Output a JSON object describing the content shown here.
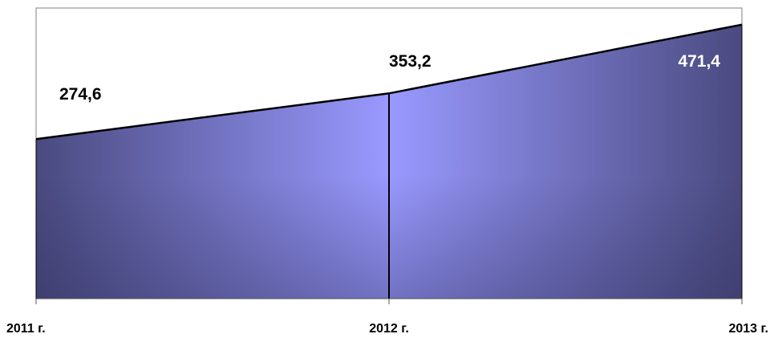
{
  "chart_data": {
    "type": "area",
    "categories": [
      "2011 г.",
      "2012 г.",
      "2013 г."
    ],
    "values": [
      274.6,
      353.2,
      471.4
    ],
    "data_labels": [
      "274,6",
      "353,2",
      "471,4"
    ],
    "title": "",
    "xlabel": "",
    "ylabel": "",
    "ylim": [
      0,
      500
    ],
    "grid": false,
    "legend": "none",
    "colors": {
      "area_dark": "#4a4a80",
      "area_light": "#9999ff",
      "line": "#000000",
      "frame": "#808080",
      "label_dark": "#000000",
      "label_light": "#ffffff"
    }
  }
}
